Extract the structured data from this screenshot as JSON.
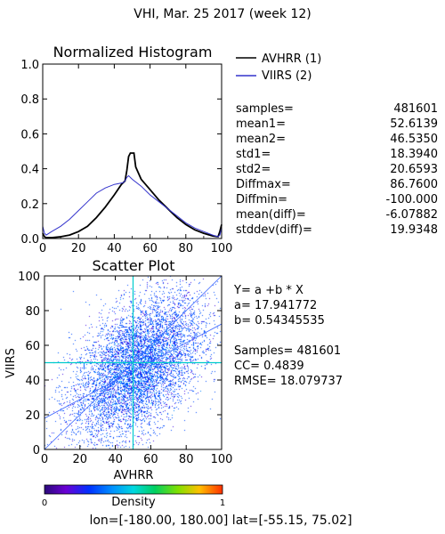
{
  "header": {
    "title": "VHI,  Mar. 25 2017 (week 12)"
  },
  "footer": {
    "range_text": "lon=[-180.00, 180.00] lat=[-55.15, 75.02]"
  },
  "colors": {
    "avhrr": "#000000",
    "viirs": "#3333cc",
    "scatter_low": "#6a00d4",
    "scatter_mid": "#0050ff",
    "scatter_high": "#00e0d0",
    "cross": "#00cccc"
  },
  "stats": {
    "items": [
      {
        "label": "samples=",
        "value": "481601"
      },
      {
        "label": "mean1=",
        "value": "52.6139"
      },
      {
        "label": "mean2=",
        "value": "46.5350"
      },
      {
        "label": "std1=",
        "value": "18.3940"
      },
      {
        "label": "std2=",
        "value": "20.6593"
      },
      {
        "label": "Diffmax=",
        "value": "86.7600"
      },
      {
        "label": "Diffmin=",
        "value": "-100.000"
      },
      {
        "label": "mean(diff)=",
        "value": "-6.07882"
      },
      {
        "label": "stddev(diff)=",
        "value": "19.9348"
      }
    ]
  },
  "regression": {
    "lines": [
      "Y= a +b * X",
      "a= 17.941772",
      "b= 0.54345535",
      "",
      "Samples= 481601",
      "CC=  0.4839",
      "RMSE= 18.079737"
    ]
  },
  "colorbar": {
    "label": "Density",
    "min_label": "0",
    "max_label": "1"
  },
  "chart_data": [
    {
      "type": "line",
      "title": "Normalized Histogram",
      "xlabel": "",
      "ylabel": "",
      "xlim": [
        0,
        100
      ],
      "ylim": [
        0,
        1.0
      ],
      "x_ticks": [
        0,
        20,
        40,
        60,
        80,
        100
      ],
      "y_ticks": [
        0.0,
        0.2,
        0.4,
        0.6,
        0.8,
        1.0
      ],
      "y_tick_labels": [
        "0.0",
        "0.2",
        "0.4",
        "0.6",
        "0.8",
        "1.0"
      ],
      "legend_position": "top-right",
      "series": [
        {
          "name": "AVHRR (1)",
          "x": [
            0,
            1,
            2,
            5,
            10,
            15,
            20,
            25,
            30,
            35,
            40,
            44,
            46,
            47,
            48,
            49,
            50,
            51,
            52,
            55,
            60,
            65,
            70,
            75,
            80,
            85,
            90,
            95,
            98,
            99,
            100
          ],
          "y": [
            0.03,
            0.01,
            0.005,
            0.005,
            0.01,
            0.02,
            0.04,
            0.07,
            0.12,
            0.18,
            0.25,
            0.31,
            0.33,
            0.39,
            0.47,
            0.49,
            0.49,
            0.49,
            0.41,
            0.34,
            0.28,
            0.22,
            0.17,
            0.12,
            0.08,
            0.05,
            0.03,
            0.015,
            0.01,
            0.04,
            0.08
          ]
        },
        {
          "name": "VIIRS (2)",
          "x": [
            0,
            1,
            2,
            5,
            10,
            15,
            20,
            25,
            30,
            35,
            40,
            45,
            46,
            47,
            48,
            50,
            55,
            60,
            65,
            70,
            75,
            80,
            85,
            90,
            95,
            98,
            99,
            100
          ],
          "y": [
            0.07,
            0.03,
            0.02,
            0.04,
            0.07,
            0.11,
            0.16,
            0.21,
            0.26,
            0.29,
            0.31,
            0.32,
            0.33,
            0.35,
            0.36,
            0.34,
            0.3,
            0.25,
            0.21,
            0.17,
            0.13,
            0.09,
            0.06,
            0.04,
            0.02,
            0.01,
            0.02,
            0.06
          ]
        }
      ]
    },
    {
      "type": "scatter",
      "title": "Scatter Plot",
      "xlabel": "AVHRR",
      "ylabel": "VIIRS",
      "xlim": [
        0,
        100
      ],
      "ylim": [
        0,
        100
      ],
      "x_ticks": [
        0,
        20,
        40,
        60,
        80,
        100
      ],
      "y_ticks": [
        0,
        20,
        40,
        60,
        80,
        100
      ],
      "mean_x": 52.6139,
      "mean_y": 46.535,
      "std_x": 18.394,
      "std_y": 20.6593,
      "correlation": 0.4839,
      "regression_intercept": 17.941772,
      "regression_slope": 0.54345535
    }
  ]
}
